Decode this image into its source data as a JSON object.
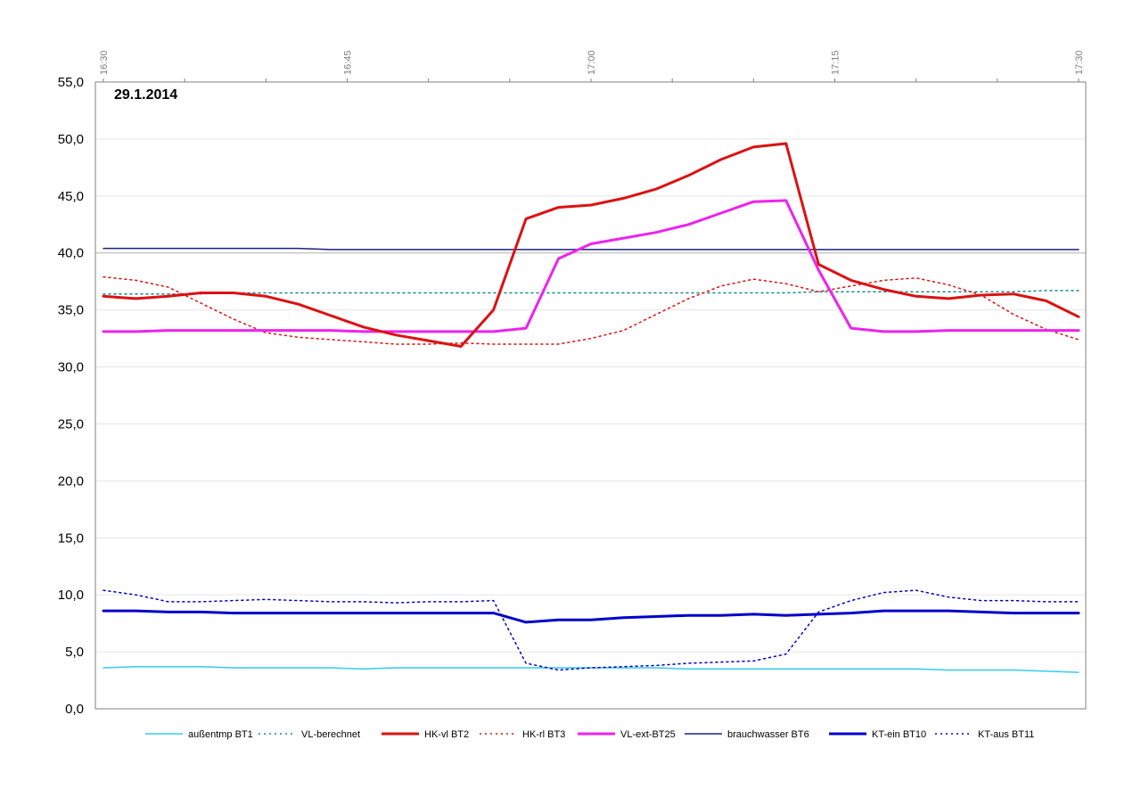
{
  "chart_data": {
    "type": "line",
    "title": "",
    "annotation": "29.1.2014",
    "xlabel": "",
    "ylabel": "",
    "x_tick_labels": [
      "16:30",
      "16:45",
      "17:00",
      "17:15",
      "17:30"
    ],
    "y_tick_labels": [
      "0,0",
      "5,0",
      "10,0",
      "15,0",
      "20,0",
      "25,0",
      "30,0",
      "35,0",
      "40,0",
      "45,0",
      "50,0",
      "55,0"
    ],
    "ylim": [
      0,
      55
    ],
    "xlim_minutes": [
      0,
      60
    ],
    "grid": "horizontal",
    "legend_position": "bottom",
    "x": [
      0,
      2,
      4,
      6,
      8,
      10,
      12,
      14,
      16,
      18,
      20,
      22,
      24,
      26,
      28,
      30,
      32,
      34,
      36,
      38,
      40,
      42,
      44,
      46,
      48,
      50,
      52,
      54,
      56,
      58,
      60
    ],
    "series": [
      {
        "name": "außentmp BT1",
        "color": "#33ccee",
        "style": "solid",
        "width": 1.5,
        "values": [
          3.6,
          3.7,
          3.7,
          3.7,
          3.6,
          3.6,
          3.6,
          3.6,
          3.5,
          3.6,
          3.6,
          3.6,
          3.6,
          3.6,
          3.6,
          3.6,
          3.6,
          3.6,
          3.5,
          3.5,
          3.5,
          3.5,
          3.5,
          3.5,
          3.5,
          3.5,
          3.4,
          3.4,
          3.4,
          3.3,
          3.2
        ]
      },
      {
        "name": "VL-berechnet",
        "color": "#1a8a8a",
        "style": "dotted",
        "width": 1.5,
        "values": [
          36.4,
          36.4,
          36.4,
          36.4,
          36.5,
          36.5,
          36.5,
          36.5,
          36.5,
          36.5,
          36.5,
          36.5,
          36.5,
          36.5,
          36.5,
          36.5,
          36.5,
          36.5,
          36.5,
          36.5,
          36.5,
          36.5,
          36.6,
          36.6,
          36.6,
          36.6,
          36.6,
          36.6,
          36.6,
          36.7,
          36.7
        ]
      },
      {
        "name": "HK-vl BT2",
        "color": "#dd1111",
        "style": "solid",
        "width": 3,
        "values": [
          36.2,
          36.0,
          36.2,
          36.5,
          36.5,
          36.2,
          35.5,
          34.5,
          33.5,
          32.8,
          32.3,
          31.8,
          35.0,
          43.0,
          44.0,
          44.2,
          44.8,
          45.6,
          46.8,
          48.2,
          49.3,
          49.6,
          39.0,
          37.6,
          36.8,
          36.2,
          36.0,
          36.3,
          36.4,
          35.8,
          34.4
        ]
      },
      {
        "name": "HK-rl BT3",
        "color": "#dd1111",
        "style": "dotted",
        "width": 1.5,
        "values": [
          37.9,
          37.6,
          37.0,
          35.6,
          34.2,
          33.0,
          32.6,
          32.4,
          32.2,
          32.0,
          32.0,
          32.1,
          32.0,
          32.0,
          32.0,
          32.5,
          33.2,
          34.6,
          36.0,
          37.1,
          37.7,
          37.3,
          36.6,
          37.1,
          37.6,
          37.8,
          37.2,
          36.3,
          34.6,
          33.3,
          32.4
        ]
      },
      {
        "name": "VL-ext-BT25",
        "color": "#ee22ee",
        "style": "solid",
        "width": 3,
        "values": [
          33.1,
          33.1,
          33.2,
          33.2,
          33.2,
          33.2,
          33.2,
          33.2,
          33.1,
          33.1,
          33.1,
          33.1,
          33.1,
          33.4,
          39.5,
          40.8,
          41.3,
          41.8,
          42.5,
          43.5,
          44.5,
          44.6,
          38.5,
          33.4,
          33.1,
          33.1,
          33.2,
          33.2,
          33.2,
          33.2,
          33.2
        ]
      },
      {
        "name": "brauchwasser BT6",
        "color": "#1a237e",
        "style": "solid",
        "width": 1.5,
        "values": [
          40.4,
          40.4,
          40.4,
          40.4,
          40.4,
          40.4,
          40.4,
          40.3,
          40.3,
          40.3,
          40.3,
          40.3,
          40.3,
          40.3,
          40.3,
          40.3,
          40.3,
          40.3,
          40.3,
          40.3,
          40.3,
          40.3,
          40.3,
          40.3,
          40.3,
          40.3,
          40.3,
          40.3,
          40.3,
          40.3,
          40.3
        ]
      },
      {
        "name": "KT-ein BT10",
        "color": "#0000cc",
        "style": "solid",
        "width": 3,
        "values": [
          8.6,
          8.6,
          8.5,
          8.5,
          8.4,
          8.4,
          8.4,
          8.4,
          8.4,
          8.4,
          8.4,
          8.4,
          8.4,
          7.6,
          7.8,
          7.8,
          8.0,
          8.1,
          8.2,
          8.2,
          8.3,
          8.2,
          8.3,
          8.4,
          8.6,
          8.6,
          8.6,
          8.5,
          8.4,
          8.4,
          8.4
        ]
      },
      {
        "name": "KT-aus BT11",
        "color": "#0000cc",
        "style": "dotted",
        "width": 1.5,
        "values": [
          10.4,
          10.0,
          9.4,
          9.4,
          9.5,
          9.6,
          9.5,
          9.4,
          9.4,
          9.3,
          9.4,
          9.4,
          9.5,
          4.0,
          3.4,
          3.6,
          3.7,
          3.8,
          4.0,
          4.1,
          4.2,
          4.8,
          8.5,
          9.5,
          10.2,
          10.4,
          9.8,
          9.5,
          9.5,
          9.4,
          9.4
        ]
      }
    ]
  }
}
